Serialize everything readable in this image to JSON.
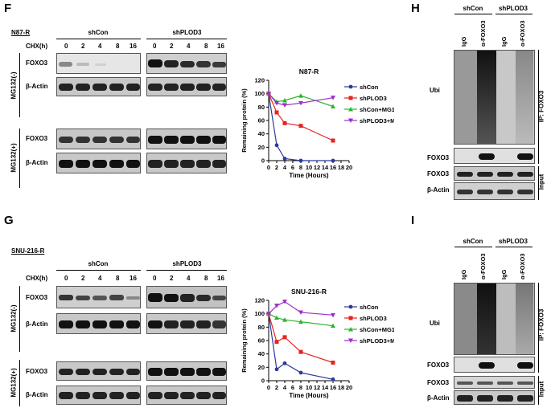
{
  "F": {
    "label": "F",
    "cell_line": "N87-R",
    "groups": [
      "shCon",
      "shPLOD3"
    ],
    "cond_label": "CHX(h)",
    "times": [
      "0",
      "2",
      "4",
      "8",
      "16"
    ],
    "mg_minus": "MG132(-)",
    "mg_plus": "MG132(+)",
    "foxo3": "FOXO3",
    "actin": "β-Actin"
  },
  "G": {
    "label": "G",
    "cell_line": "SNU-216-R",
    "groups": [
      "shCon",
      "shPLOD3"
    ],
    "cond_label": "CHX(h)",
    "times": [
      "0",
      "2",
      "4",
      "8",
      "16"
    ],
    "mg_minus": "MG132(-)",
    "mg_plus": "MG132(+)",
    "foxo3": "FOXO3",
    "actin": "β-Actin"
  },
  "H": {
    "label": "H",
    "groups": [
      "shCon",
      "shPLOD3"
    ],
    "lanes": [
      "IgG",
      "α-FOXO3",
      "IgG",
      "α-FOXO3"
    ],
    "ubi": "Ubi",
    "foxo3": "FOXO3",
    "actin": "β-Actin",
    "ip": "IP: FOXO3",
    "input": "Input"
  },
  "I": {
    "label": "I",
    "groups": [
      "shCon",
      "shPLOD3"
    ],
    "lanes": [
      "IgG",
      "α-FOXO3",
      "IgG",
      "α-FOXO3"
    ],
    "ubi": "Ubi",
    "foxo3": "FOXO3",
    "actin": "β-Actin",
    "ip": "IP: FOXO3",
    "input": "Input"
  },
  "chart_data": [
    {
      "type": "line",
      "title": "N87-R",
      "xlabel": "Time (Hours)",
      "ylabel": "Remaining protein (%)",
      "xlim": [
        0,
        20
      ],
      "ylim": [
        0,
        120
      ],
      "xticks": [
        0,
        2,
        4,
        6,
        8,
        10,
        12,
        14,
        16,
        18,
        20
      ],
      "yticks": [
        0,
        20,
        40,
        60,
        80,
        100,
        120
      ],
      "legend": "right",
      "series": [
        {
          "name": "shCon",
          "color": "#2b3a9c",
          "marker": "circle",
          "x": [
            0,
            2,
            4,
            8,
            16
          ],
          "y": [
            100,
            23,
            3,
            0,
            0
          ]
        },
        {
          "name": "shPLOD3",
          "color": "#e8231f",
          "marker": "square",
          "x": [
            0,
            2,
            4,
            8,
            16
          ],
          "y": [
            100,
            72,
            56,
            52,
            30
          ]
        },
        {
          "name": "shCon+MG132",
          "color": "#2db52d",
          "marker": "triangle-up",
          "x": [
            0,
            2,
            4,
            8,
            16
          ],
          "y": [
            100,
            88,
            90,
            97,
            81
          ]
        },
        {
          "name": "shPLOD3+MG132",
          "color": "#9b30c9",
          "marker": "triangle-down",
          "x": [
            0,
            2,
            4,
            8,
            16
          ],
          "y": [
            100,
            86,
            83,
            86,
            94
          ]
        }
      ]
    },
    {
      "type": "line",
      "title": "SNU-216-R",
      "xlabel": "Time (Hours)",
      "ylabel": "Remaining protein (%)",
      "xlim": [
        0,
        20
      ],
      "ylim": [
        0,
        120
      ],
      "xticks": [
        0,
        2,
        4,
        6,
        8,
        10,
        12,
        14,
        16,
        18,
        20
      ],
      "yticks": [
        0,
        20,
        40,
        60,
        80,
        100,
        120
      ],
      "legend": "right",
      "series": [
        {
          "name": "shCon",
          "color": "#2b3a9c",
          "marker": "circle",
          "x": [
            0,
            2,
            4,
            8,
            16
          ],
          "y": [
            100,
            17,
            26,
            12,
            2
          ]
        },
        {
          "name": "shPLOD3",
          "color": "#e8231f",
          "marker": "square",
          "x": [
            0,
            2,
            4,
            8,
            16
          ],
          "y": [
            100,
            58,
            65,
            43,
            27
          ]
        },
        {
          "name": "shCon+MG132",
          "color": "#2db52d",
          "marker": "triangle-up",
          "x": [
            0,
            2,
            4,
            8,
            16
          ],
          "y": [
            100,
            94,
            91,
            88,
            82
          ]
        },
        {
          "name": "shPLOD3+MG132",
          "color": "#9b30c9",
          "marker": "triangle-down",
          "x": [
            0,
            2,
            4,
            8,
            16
          ],
          "y": [
            100,
            112,
            118,
            102,
            98
          ]
        }
      ]
    }
  ]
}
